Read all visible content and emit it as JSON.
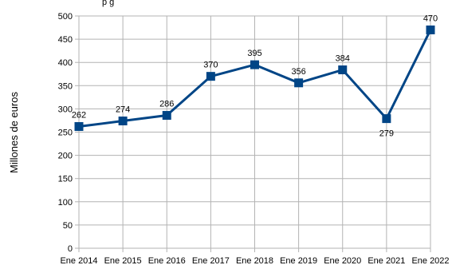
{
  "chart_data": {
    "type": "line",
    "title": "",
    "top_text_fragment": "p         g",
    "xlabel": "",
    "ylabel": "Millones de euros",
    "categories": [
      "Ene 2014",
      "Ene 2015",
      "Ene 2016",
      "Ene 2017",
      "Ene 2018",
      "Ene 2019",
      "Ene 2020",
      "Ene 2021",
      "Ene 2022"
    ],
    "series": [
      {
        "values": [
          262,
          274,
          286,
          370,
          395,
          356,
          384,
          279,
          470
        ],
        "data_labels": [
          "262",
          "274",
          "286",
          "370",
          "395",
          "356",
          "384",
          "279",
          "470"
        ],
        "color": "#004586"
      }
    ],
    "ylim": [
      0,
      500
    ],
    "yticks": [
      "0",
      "50",
      "100",
      "150",
      "200",
      "250",
      "300",
      "350",
      "400",
      "450",
      "500"
    ],
    "grid": true,
    "gridline_color": "#b3b3b3",
    "marker": "square"
  }
}
